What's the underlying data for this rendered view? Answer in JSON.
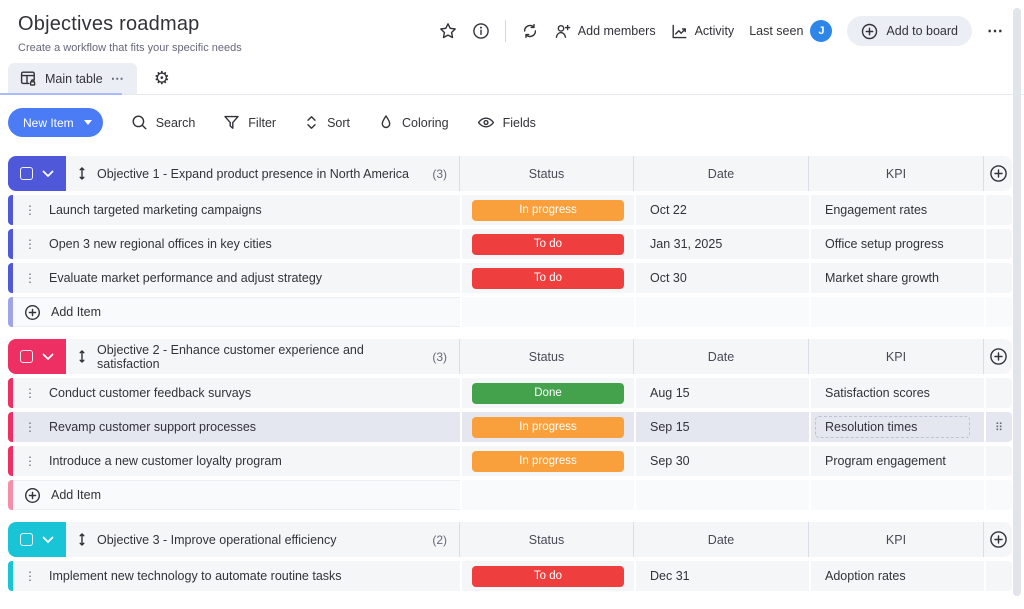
{
  "header": {
    "title": "Objectives roadmap",
    "subtitle": "Create a workflow that fits your specific needs",
    "add_members": "Add members",
    "activity": "Activity",
    "last_seen": "Last seen",
    "avatar_initial": "J",
    "add_to_board": "Add to board"
  },
  "tab": {
    "label": "Main table"
  },
  "toolbar": {
    "new_item": "New Item",
    "search": "Search",
    "filter": "Filter",
    "sort": "Sort",
    "coloring": "Coloring",
    "fields": "Fields"
  },
  "columns": [
    "Status",
    "Date",
    "KPI"
  ],
  "icons": {
    "more": "⋯",
    "kebab": "⋮",
    "drag_dots": "⠿"
  },
  "colors": {
    "accent_blue": "#4b7bf5",
    "avatar_blue": "#2e86e8",
    "status_orange": "#f9a03c",
    "status_red": "#ef3e3e",
    "status_green": "#44a24c"
  },
  "groups": [
    {
      "name": "Objective 1 - Expand product presence in North America",
      "count": "(3)",
      "color": "#4e58d8",
      "rows": [
        {
          "name": "Launch targeted marketing campaigns",
          "status": "In progress",
          "status_color": "#f9a03c",
          "date": "Oct 22",
          "kpi": "Engagement rates"
        },
        {
          "name": "Open 3 new regional offices in key cities",
          "status": "To do",
          "status_color": "#ef3e3e",
          "date": "Jan 31, 2025",
          "kpi": "Office setup progress"
        },
        {
          "name": "Evaluate market performance and adjust strategy",
          "status": "To do",
          "status_color": "#ef3e3e",
          "date": "Oct 30",
          "kpi": "Market share growth"
        }
      ],
      "add_item": "Add Item"
    },
    {
      "name": "Objective 2 - Enhance customer experience and satisfaction",
      "count": "(3)",
      "color": "#ee2f63",
      "rows": [
        {
          "name": "Conduct customer feedback survays",
          "status": "Done",
          "status_color": "#44a24c",
          "date": "Aug 15",
          "kpi": "Satisfaction scores"
        },
        {
          "name": "Revamp customer support processes",
          "status": "In progress",
          "status_color": "#f9a03c",
          "date": "Sep 15",
          "kpi": "Resolution times",
          "highlighted": true
        },
        {
          "name": "Introduce a new customer loyalty program",
          "status": "In progress",
          "status_color": "#f9a03c",
          "date": "Sep 30",
          "kpi": "Program engagement"
        }
      ],
      "add_item": "Add Item"
    },
    {
      "name": "Objective 3 - Improve operational efficiency",
      "count": "(2)",
      "color": "#19c4d6",
      "rows": [
        {
          "name": "Implement new technology to automate routine tasks",
          "status": "To do",
          "status_color": "#ef3e3e",
          "date": "Dec 31",
          "kpi": "Adoption rates"
        }
      ]
    }
  ]
}
